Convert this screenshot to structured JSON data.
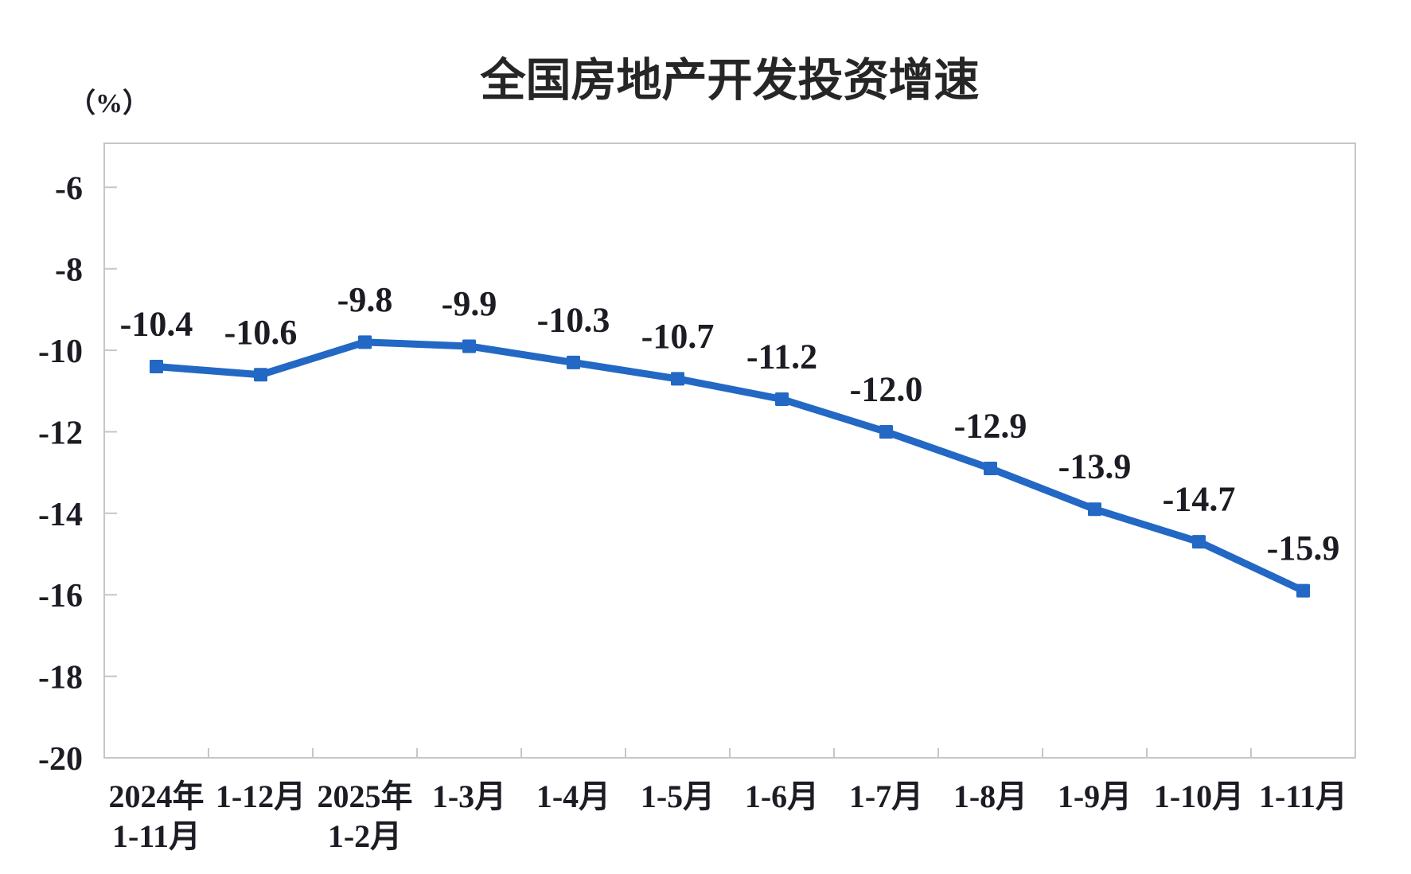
{
  "chart_data": {
    "type": "line",
    "title": "全国房地产开发投资增速",
    "unit_label": "（%）",
    "categories": [
      [
        "2024年",
        "1-11月"
      ],
      [
        "1-12月"
      ],
      [
        "2025年",
        "1-2月"
      ],
      [
        "1-3月"
      ],
      [
        "1-4月"
      ],
      [
        "1-5月"
      ],
      [
        "1-6月"
      ],
      [
        "1-7月"
      ],
      [
        "1-8月"
      ],
      [
        "1-9月"
      ],
      [
        "1-10月"
      ],
      [
        "1-11月"
      ]
    ],
    "values": [
      -10.4,
      -10.6,
      -9.8,
      -9.9,
      -10.3,
      -10.7,
      -11.2,
      -12.0,
      -12.9,
      -13.9,
      -14.7,
      -15.9
    ],
    "data_labels": [
      "-10.4",
      "-10.6",
      "-9.8",
      "-9.9",
      "-10.3",
      "-10.7",
      "-11.2",
      "-12.0",
      "-12.9",
      "-13.9",
      "-14.7",
      "-15.9"
    ],
    "series_name": "全国房地产开发投资增速",
    "ylim": [
      -20,
      -4.92
    ],
    "yticks": [
      -6,
      -8,
      -10,
      -12,
      -14,
      -16,
      -18,
      -20
    ],
    "ytick_labels": [
      "-6",
      "-8",
      "-10",
      "-12",
      "-14",
      "-16",
      "-18",
      "-20"
    ],
    "xlabel": "",
    "ylabel": "（%）",
    "grid": false,
    "legend_position": "none",
    "line_color": "#2268C4",
    "marker_color": "#2268C4",
    "axis_color": "#C6C6C6",
    "text_color": "#1C1C24",
    "background_color": "#FFFFFF"
  }
}
